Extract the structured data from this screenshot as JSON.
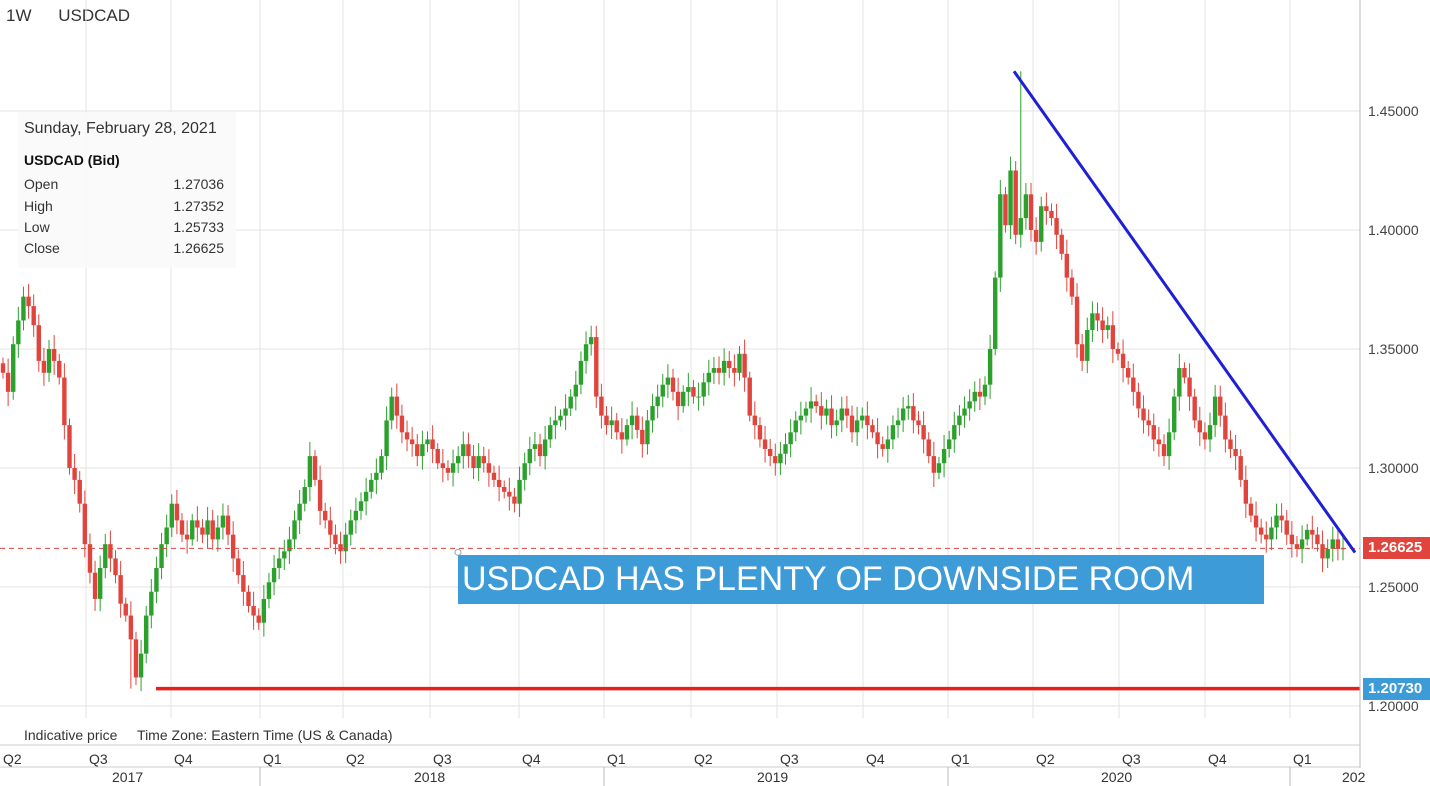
{
  "header": {
    "timeframe": "1W",
    "symbol": "USDCAD"
  },
  "info_box": {
    "date": "Sunday, February 28, 2021",
    "instrument": "USDCAD (Bid)",
    "rows": [
      {
        "label": "Open",
        "value": "1.27036"
      },
      {
        "label": "High",
        "value": "1.27352"
      },
      {
        "label": "Low",
        "value": "1.25733"
      },
      {
        "label": "Close",
        "value": "1.26625"
      }
    ]
  },
  "footer": {
    "indicative": "Indicative price",
    "timezone": "Time Zone: Eastern Time (US & Canada)"
  },
  "annotation": {
    "text": "USDCAD HAS PLENTY OF DOWNSIDE ROOM"
  },
  "price_labels": {
    "current": "1.26625",
    "support": "1.20730"
  },
  "colors": {
    "up": "#2ca02c",
    "down": "#e0443c",
    "trendline": "#1f1fd6",
    "support": "#e81e1e",
    "current_tag": "#e0443c",
    "support_tag": "#3d9bd8",
    "grid": "#e3e3e3"
  },
  "chart_data": {
    "type": "candlestick",
    "y_ticks": [
      "1.45000",
      "1.40000",
      "1.35000",
      "1.30000",
      "1.25000",
      "1.20000"
    ],
    "ylim": [
      1.195,
      1.475
    ],
    "quarter_ticks": [
      "Q2",
      "Q3",
      "Q4",
      "Q1",
      "Q2",
      "Q3",
      "Q4",
      "Q1",
      "Q2",
      "Q3",
      "Q4",
      "Q1",
      "Q2",
      "Q3",
      "Q4",
      "Q1"
    ],
    "year_ticks": [
      "2017",
      "2018",
      "2019",
      "2020",
      "202"
    ],
    "grid": true,
    "trendline": {
      "from_price": 1.4667,
      "to_price": 1.2645
    },
    "support_level": 1.2073,
    "current_price": 1.26625,
    "weekly_close": [
      1.34,
      1.332,
      1.352,
      1.362,
      1.372,
      1.368,
      1.36,
      1.345,
      1.34,
      1.35,
      1.345,
      1.338,
      1.318,
      1.3,
      1.295,
      1.285,
      1.268,
      1.256,
      1.245,
      1.258,
      1.268,
      1.262,
      1.255,
      1.243,
      1.238,
      1.228,
      1.212,
      1.222,
      1.238,
      1.248,
      1.258,
      1.268,
      1.275,
      1.285,
      1.278,
      1.272,
      1.27,
      1.278,
      1.275,
      1.272,
      1.278,
      1.27,
      1.275,
      1.28,
      1.272,
      1.262,
      1.255,
      1.248,
      1.242,
      1.238,
      1.235,
      1.245,
      1.252,
      1.258,
      1.262,
      1.265,
      1.27,
      1.278,
      1.285,
      1.292,
      1.305,
      1.295,
      1.282,
      1.278,
      1.272,
      1.268,
      1.265,
      1.272,
      1.278,
      1.282,
      1.286,
      1.29,
      1.295,
      1.298,
      1.305,
      1.32,
      1.33,
      1.322,
      1.315,
      1.312,
      1.31,
      1.305,
      1.31,
      1.312,
      1.308,
      1.302,
      1.3,
      1.298,
      1.302,
      1.305,
      1.31,
      1.305,
      1.3,
      1.305,
      1.302,
      1.298,
      1.295,
      1.292,
      1.29,
      1.288,
      1.285,
      1.295,
      1.302,
      1.308,
      1.31,
      1.305,
      1.312,
      1.318,
      1.32,
      1.322,
      1.325,
      1.33,
      1.335,
      1.345,
      1.352,
      1.355,
      1.33,
      1.322,
      1.318,
      1.32,
      1.315,
      1.312,
      1.318,
      1.322,
      1.316,
      1.31,
      1.32,
      1.326,
      1.33,
      1.335,
      1.338,
      1.332,
      1.326,
      1.332,
      1.334,
      1.33,
      1.33,
      1.336,
      1.34,
      1.342,
      1.34,
      1.345,
      1.342,
      1.34,
      1.348,
      1.338,
      1.322,
      1.318,
      1.312,
      1.308,
      1.305,
      1.302,
      1.306,
      1.31,
      1.315,
      1.32,
      1.322,
      1.325,
      1.328,
      1.326,
      1.322,
      1.325,
      1.318,
      1.32,
      1.325,
      1.322,
      1.315,
      1.32,
      1.322,
      1.318,
      1.315,
      1.31,
      1.308,
      1.312,
      1.318,
      1.32,
      1.325,
      1.326,
      1.32,
      1.318,
      1.312,
      1.305,
      1.298,
      1.302,
      1.308,
      1.312,
      1.318,
      1.322,
      1.325,
      1.328,
      1.332,
      1.33,
      1.335,
      1.35,
      1.38,
      1.415,
      1.402,
      1.425,
      1.398,
      1.405,
      1.415,
      1.4,
      1.395,
      1.41,
      1.408,
      1.405,
      1.398,
      1.39,
      1.38,
      1.372,
      1.352,
      1.345,
      1.358,
      1.365,
      1.362,
      1.358,
      1.36,
      1.35,
      1.348,
      1.342,
      1.338,
      1.332,
      1.325,
      1.32,
      1.318,
      1.312,
      1.31,
      1.305,
      1.315,
      1.33,
      1.342,
      1.338,
      1.33,
      1.32,
      1.315,
      1.312,
      1.318,
      1.33,
      1.322,
      1.312,
      1.308,
      1.305,
      1.295,
      1.285,
      1.28,
      1.275,
      1.272,
      1.27,
      1.275,
      1.28,
      1.278,
      1.272,
      1.268,
      1.266,
      1.27,
      1.274,
      1.272,
      1.268,
      1.262,
      1.266,
      1.27,
      1.266,
      1.26625
    ]
  }
}
